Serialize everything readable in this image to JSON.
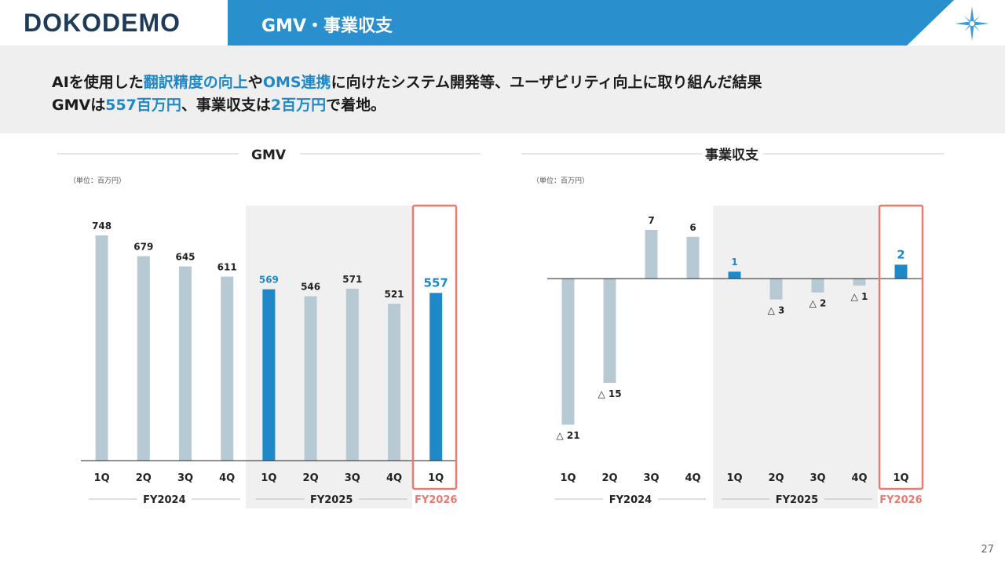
{
  "header": {
    "logo_text": "DOKODEMO",
    "title": "GMV・事業収支",
    "accent": "#2a8fcd"
  },
  "summary": {
    "line1": [
      {
        "text": "AIを使用した",
        "hl": false
      },
      {
        "text": "翻訳精度の向上",
        "hl": true
      },
      {
        "text": "や",
        "hl": false
      },
      {
        "text": "OMS連携",
        "hl": true
      },
      {
        "text": "に向けたシステム開発等、ユーザビリティ向上に取り組んだ結果",
        "hl": false
      }
    ],
    "line2": [
      {
        "text": "GMVは",
        "hl": false
      },
      {
        "text": "557百万円",
        "hl": true
      },
      {
        "text": "、事業収支は",
        "hl": false
      },
      {
        "text": "2百万円",
        "hl": true
      },
      {
        "text": "で着地。",
        "hl": false
      }
    ]
  },
  "page_number": "27",
  "colors": {
    "normal_bar": "#b7cad4",
    "highlight_bar": "#1e88c8",
    "highlight_box": "#e87a70",
    "fy_shade": "#f0f0f0"
  },
  "chart_data": [
    {
      "type": "bar",
      "title": "GMV",
      "unit_note": "（単位：百万円）",
      "categories": [
        "1Q",
        "2Q",
        "3Q",
        "4Q",
        "1Q",
        "2Q",
        "3Q",
        "4Q",
        "1Q"
      ],
      "groups": [
        {
          "label": "FY2024",
          "count": 4
        },
        {
          "label": "FY2025",
          "count": 4,
          "shaded": true
        },
        {
          "label": "FY2026",
          "count": 1,
          "boxed": true
        }
      ],
      "values": [
        748,
        679,
        645,
        611,
        569,
        546,
        571,
        521,
        557
      ],
      "value_labels": [
        "748",
        "679",
        "645",
        "611",
        "569",
        "546",
        "571",
        "521",
        "557"
      ],
      "highlight": [
        false,
        false,
        false,
        false,
        true,
        false,
        false,
        false,
        true
      ],
      "ylim": [
        0,
        800
      ]
    },
    {
      "type": "bar",
      "title": "事業収支",
      "unit_note": "（単位：百万円）",
      "categories": [
        "1Q",
        "2Q",
        "3Q",
        "4Q",
        "1Q",
        "2Q",
        "3Q",
        "4Q",
        "1Q"
      ],
      "groups": [
        {
          "label": "FY2024",
          "count": 4
        },
        {
          "label": "FY2025",
          "count": 4,
          "shaded": true
        },
        {
          "label": "FY2026",
          "count": 1,
          "boxed": true
        }
      ],
      "values": [
        -21,
        -15,
        7,
        6,
        1,
        -3,
        -2,
        -1,
        2
      ],
      "value_labels": [
        "△ 21",
        "△ 15",
        "7",
        "6",
        "1",
        "△ 3",
        "△ 2",
        "△ 1",
        "2"
      ],
      "highlight": [
        false,
        false,
        false,
        false,
        true,
        false,
        false,
        false,
        true
      ],
      "ylim": [
        -22,
        9
      ]
    }
  ]
}
